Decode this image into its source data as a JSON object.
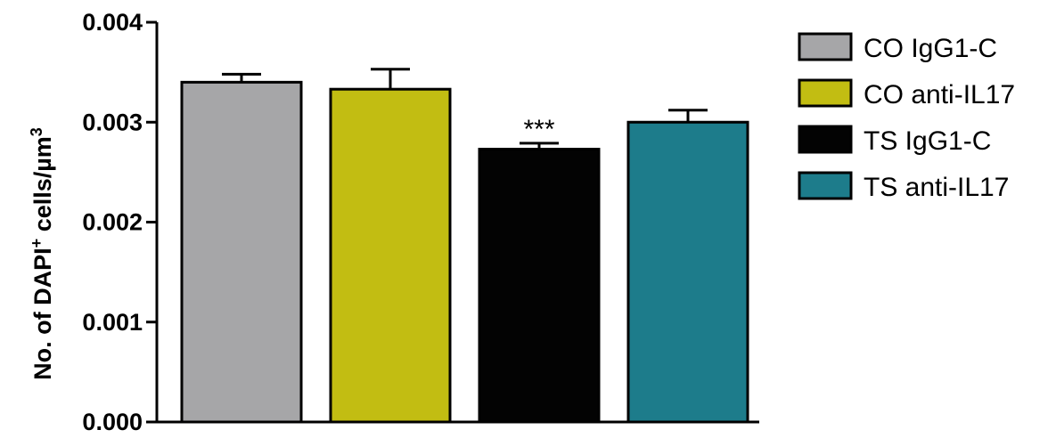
{
  "chart_data": {
    "type": "bar",
    "title": "",
    "xlabel": "",
    "ylabel": {
      "prefix": "No. of DAPI",
      "superscript": "+",
      "mid": " cells/µm",
      "unit_superscript": "3"
    },
    "ylim": [
      0,
      0.004
    ],
    "yticks": [
      "0.000",
      "0.001",
      "0.002",
      "0.003",
      "0.004"
    ],
    "ytick_values": [
      0,
      0.001,
      0.002,
      0.003,
      0.004
    ],
    "grid": false,
    "legend_position": "right",
    "series": [
      {
        "name": "CO IgG1-C",
        "value": 0.0034,
        "error": 8e-05,
        "color": "#a6a6a8",
        "annotation": ""
      },
      {
        "name": "CO anti-IL17",
        "value": 0.00333,
        "error": 0.0002,
        "color": "#c2bd12",
        "annotation": ""
      },
      {
        "name": "TS IgG1-C",
        "value": 0.00273,
        "error": 6e-05,
        "color": "#030303",
        "annotation": "***"
      },
      {
        "name": "TS anti-IL17",
        "value": 0.003,
        "error": 0.00012,
        "color": "#1d7c8b",
        "annotation": ""
      }
    ]
  }
}
